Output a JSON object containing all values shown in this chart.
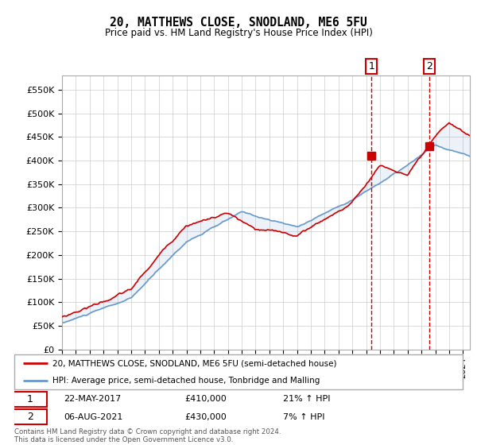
{
  "title": "20, MATTHEWS CLOSE, SNODLAND, ME6 5FU",
  "subtitle": "Price paid vs. HM Land Registry's House Price Index (HPI)",
  "xlim_start": 1995.0,
  "xlim_end": 2024.5,
  "ylim": [
    0,
    580000
  ],
  "yticks": [
    0,
    50000,
    100000,
    150000,
    200000,
    250000,
    300000,
    350000,
    400000,
    450000,
    500000,
    550000
  ],
  "ytick_labels": [
    "£0",
    "£50K",
    "£100K",
    "£150K",
    "£200K",
    "£250K",
    "£300K",
    "£350K",
    "£400K",
    "£450K",
    "£500K",
    "£550K"
  ],
  "sale1_x": 2017.39,
  "sale1_y": 410000,
  "sale1_label": "22-MAY-2017",
  "sale1_price": "£410,000",
  "sale1_hpi": "21% ↑ HPI",
  "sale2_x": 2021.59,
  "sale2_y": 430000,
  "sale2_label": "06-AUG-2021",
  "sale2_price": "£430,000",
  "sale2_hpi": "7% ↑ HPI",
  "red_color": "#cc0000",
  "blue_color": "#6699cc",
  "legend_label1": "20, MATTHEWS CLOSE, SNODLAND, ME6 5FU (semi-detached house)",
  "legend_label2": "HPI: Average price, semi-detached house, Tonbridge and Malling",
  "footer": "Contains HM Land Registry data © Crown copyright and database right 2024.\nThis data is licensed under the Open Government Licence v3.0.",
  "plot_bg_color": "#ffffff"
}
